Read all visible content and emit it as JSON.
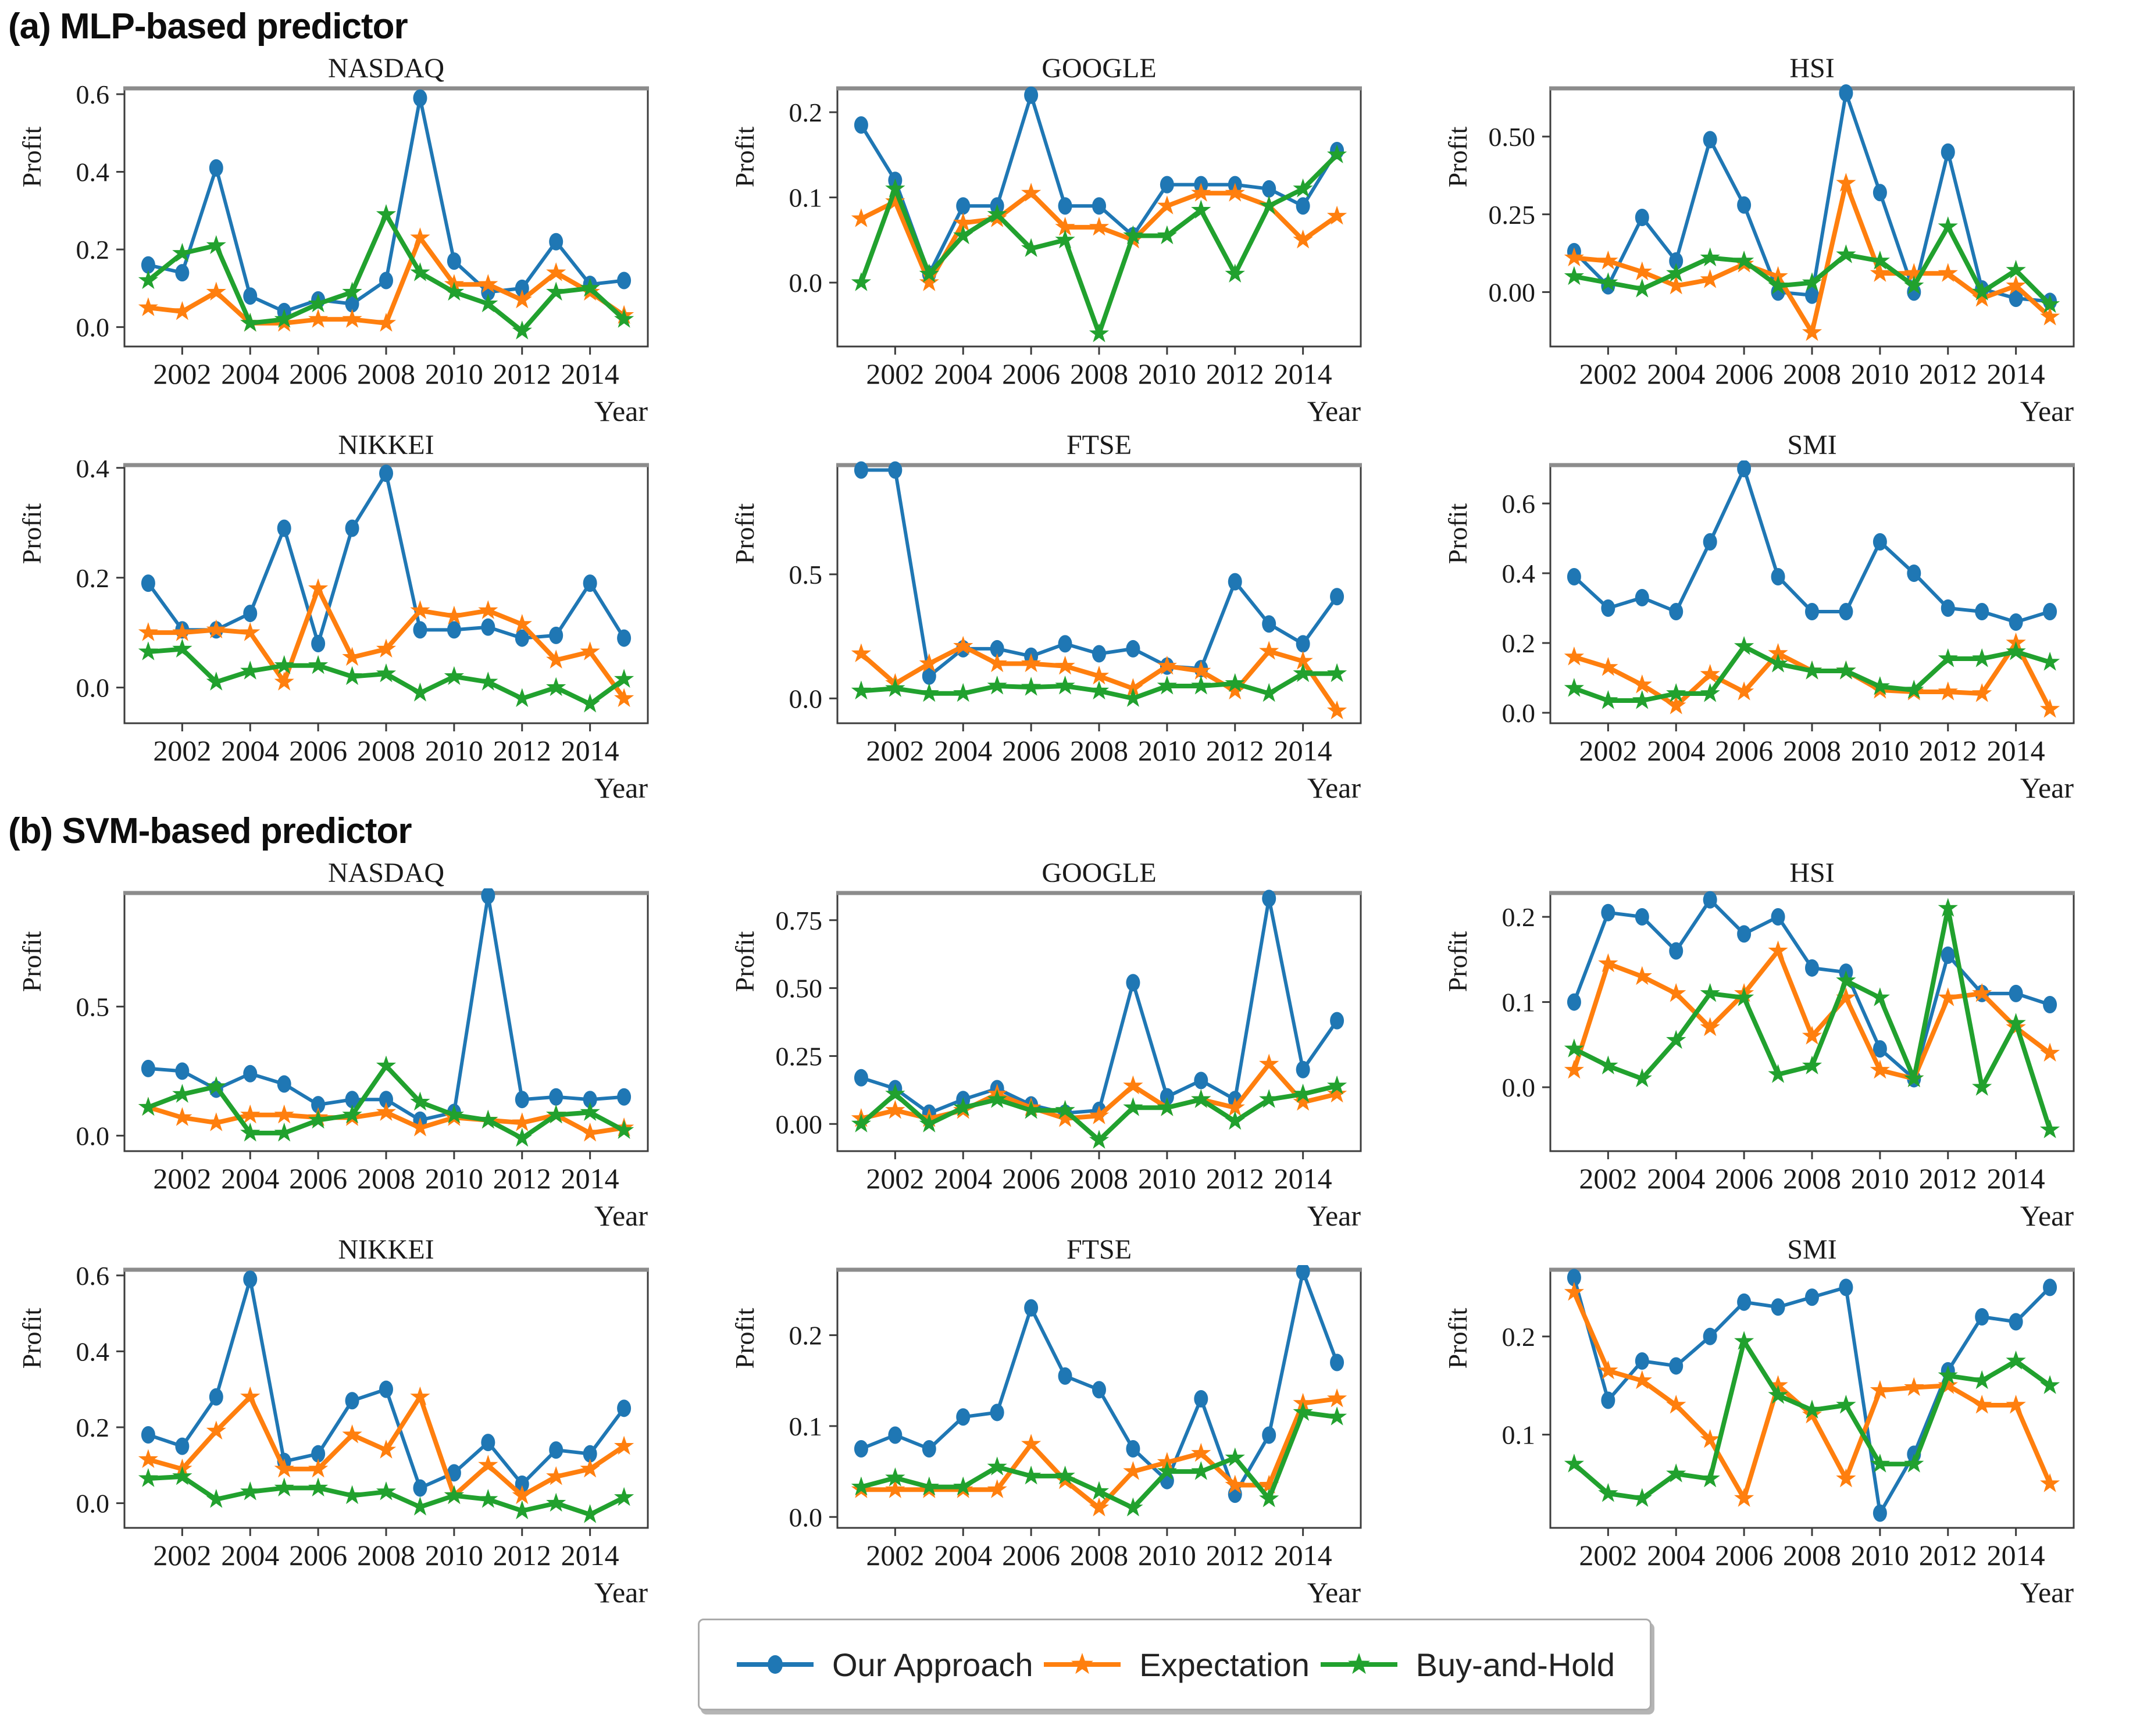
{
  "headings": {
    "a": "(a) MLP-based predictor",
    "b": "(b) SVM-based predictor"
  },
  "axis": {
    "xlabel": "Year",
    "ylabel": "Profit"
  },
  "legend": {
    "items": [
      {
        "label": "Our Approach",
        "color": "#1f77b4",
        "marker": "circle"
      },
      {
        "label": "Expectation",
        "color": "#ff7f0e",
        "marker": "star"
      },
      {
        "label": "Buy-and-Hold",
        "color": "#21a12e",
        "marker": "star"
      }
    ]
  },
  "chart_data": {
    "type": "line",
    "xlabel": "Year",
    "ylabel": "Profit",
    "x_years": [
      2001,
      2002,
      2003,
      2004,
      2005,
      2006,
      2007,
      2008,
      2009,
      2010,
      2011,
      2012,
      2013,
      2014,
      2015
    ],
    "xticks": [
      2002,
      2004,
      2006,
      2008,
      2010,
      2012,
      2014
    ],
    "xlim": [
      2000.3,
      2015.7
    ],
    "legend_position": "bottom",
    "grid": false,
    "charts": [
      {
        "section": "a",
        "title": "NASDAQ",
        "yticks": [
          "0.0",
          "0.2",
          "0.4",
          "0.6"
        ],
        "ylim": [
          -0.05,
          0.615
        ],
        "series": [
          {
            "name": "Our Approach",
            "values": [
              0.16,
              0.14,
              0.41,
              0.08,
              0.04,
              0.07,
              0.06,
              0.12,
              0.59,
              0.17,
              0.09,
              0.1,
              0.22,
              0.11,
              0.12
            ]
          },
          {
            "name": "Expectation",
            "values": [
              0.05,
              0.04,
              0.09,
              0.01,
              0.01,
              0.02,
              0.02,
              0.01,
              0.23,
              0.11,
              0.11,
              0.07,
              0.14,
              0.09,
              0.03
            ]
          },
          {
            "name": "Buy-and-Hold",
            "values": [
              0.12,
              0.19,
              0.21,
              0.01,
              0.02,
              0.06,
              0.09,
              0.29,
              0.14,
              0.09,
              0.06,
              -0.01,
              0.09,
              0.1,
              0.02
            ]
          }
        ]
      },
      {
        "section": "a",
        "title": "GOOGLE",
        "yticks": [
          "0.0",
          "0.1",
          "0.2"
        ],
        "ylim": [
          -0.075,
          0.228
        ],
        "series": [
          {
            "name": "Our Approach",
            "values": [
              0.185,
              0.12,
              0.01,
              0.09,
              0.09,
              0.22,
              0.09,
              0.09,
              0.055,
              0.115,
              0.115,
              0.115,
              0.11,
              0.09,
              0.155
            ]
          },
          {
            "name": "Expectation",
            "values": [
              0.075,
              0.095,
              0.0,
              0.07,
              0.075,
              0.105,
              0.065,
              0.065,
              0.05,
              0.09,
              0.105,
              0.105,
              0.09,
              0.05,
              0.078
            ]
          },
          {
            "name": "Buy-and-Hold",
            "values": [
              0.0,
              0.11,
              0.01,
              0.055,
              0.08,
              0.04,
              0.05,
              -0.06,
              0.055,
              0.055,
              0.085,
              0.01,
              0.09,
              0.11,
              0.15
            ]
          }
        ]
      },
      {
        "section": "a",
        "title": "HSI",
        "yticks": [
          "0.00",
          "0.25",
          "0.50"
        ],
        "ylim": [
          -0.175,
          0.655
        ],
        "series": [
          {
            "name": "Our Approach",
            "values": [
              0.13,
              0.02,
              0.24,
              0.1,
              0.49,
              0.28,
              0.0,
              -0.01,
              0.64,
              0.32,
              0.0,
              0.45,
              0.01,
              -0.02,
              -0.03
            ]
          },
          {
            "name": "Expectation",
            "values": [
              0.11,
              0.1,
              0.065,
              0.02,
              0.04,
              0.09,
              0.05,
              -0.13,
              0.35,
              0.06,
              0.06,
              0.06,
              -0.02,
              0.02,
              -0.08
            ]
          },
          {
            "name": "Buy-and-Hold",
            "values": [
              0.05,
              0.03,
              0.01,
              0.06,
              0.11,
              0.1,
              0.02,
              0.03,
              0.12,
              0.1,
              0.02,
              0.21,
              0.0,
              0.07,
              -0.04
            ]
          }
        ]
      },
      {
        "section": "a",
        "title": "NIKKEI",
        "yticks": [
          "0.0",
          "0.2",
          "0.4"
        ],
        "ylim": [
          -0.065,
          0.405
        ],
        "series": [
          {
            "name": "Our Approach",
            "values": [
              0.19,
              0.105,
              0.105,
              0.135,
              0.29,
              0.08,
              0.29,
              0.39,
              0.105,
              0.105,
              0.11,
              0.09,
              0.095,
              0.19,
              0.09
            ]
          },
          {
            "name": "Expectation",
            "values": [
              0.1,
              0.1,
              0.105,
              0.1,
              0.01,
              0.18,
              0.055,
              0.07,
              0.14,
              0.13,
              0.14,
              0.115,
              0.05,
              0.065,
              -0.02
            ]
          },
          {
            "name": "Buy-and-Hold",
            "values": [
              0.065,
              0.07,
              0.01,
              0.03,
              0.04,
              0.04,
              0.02,
              0.025,
              -0.01,
              0.02,
              0.01,
              -0.02,
              0.0,
              -0.03,
              0.015
            ]
          }
        ]
      },
      {
        "section": "a",
        "title": "FTSE",
        "yticks": [
          "0.0",
          "0.5"
        ],
        "ylim": [
          -0.1,
          0.94
        ],
        "series": [
          {
            "name": "Our Approach",
            "values": [
              0.92,
              0.92,
              0.09,
              0.2,
              0.2,
              0.17,
              0.22,
              0.18,
              0.2,
              0.13,
              0.12,
              0.47,
              0.3,
              0.22,
              0.41
            ]
          },
          {
            "name": "Expectation",
            "values": [
              0.18,
              0.06,
              0.14,
              0.21,
              0.14,
              0.14,
              0.13,
              0.09,
              0.04,
              0.13,
              0.11,
              0.03,
              0.19,
              0.15,
              -0.05
            ]
          },
          {
            "name": "Buy-and-Hold",
            "values": [
              0.03,
              0.04,
              0.02,
              0.02,
              0.05,
              0.045,
              0.05,
              0.03,
              0.0,
              0.05,
              0.05,
              0.06,
              0.02,
              0.1,
              0.1
            ]
          }
        ]
      },
      {
        "section": "a",
        "title": "SMI",
        "yticks": [
          "0.0",
          "0.2",
          "0.4",
          "0.6"
        ],
        "ylim": [
          -0.03,
          0.71
        ],
        "series": [
          {
            "name": "Our Approach",
            "values": [
              0.39,
              0.3,
              0.33,
              0.29,
              0.49,
              0.7,
              0.39,
              0.29,
              0.29,
              0.49,
              0.4,
              0.3,
              0.29,
              0.26,
              0.29
            ]
          },
          {
            "name": "Expectation",
            "values": [
              0.16,
              0.13,
              0.08,
              0.02,
              0.11,
              0.06,
              0.17,
              0.12,
              0.12,
              0.065,
              0.06,
              0.06,
              0.055,
              0.2,
              0.01
            ]
          },
          {
            "name": "Buy-and-Hold",
            "values": [
              0.07,
              0.035,
              0.035,
              0.055,
              0.055,
              0.19,
              0.14,
              0.12,
              0.12,
              0.075,
              0.065,
              0.155,
              0.155,
              0.175,
              0.145
            ]
          }
        ]
      },
      {
        "section": "b",
        "title": "NASDAQ",
        "yticks": [
          "0.0",
          "0.5"
        ],
        "ylim": [
          -0.06,
          0.94
        ],
        "series": [
          {
            "name": "Our Approach",
            "values": [
              0.26,
              0.25,
              0.18,
              0.24,
              0.2,
              0.12,
              0.14,
              0.14,
              0.06,
              0.09,
              0.93,
              0.14,
              0.15,
              0.14,
              0.15
            ]
          },
          {
            "name": "Expectation",
            "values": [
              0.11,
              0.07,
              0.05,
              0.08,
              0.08,
              0.07,
              0.07,
              0.09,
              0.03,
              0.07,
              0.06,
              0.05,
              0.08,
              0.01,
              0.03
            ]
          },
          {
            "name": "Buy-and-Hold",
            "values": [
              0.11,
              0.16,
              0.19,
              0.01,
              0.01,
              0.06,
              0.08,
              0.27,
              0.13,
              0.08,
              0.06,
              -0.01,
              0.08,
              0.09,
              0.02
            ]
          }
        ]
      },
      {
        "section": "b",
        "title": "GOOGLE",
        "yticks": [
          "0.00",
          "0.25",
          "0.50",
          "0.75"
        ],
        "ylim": [
          -0.1,
          0.85
        ],
        "series": [
          {
            "name": "Our Approach",
            "values": [
              0.17,
              0.13,
              0.04,
              0.09,
              0.13,
              0.07,
              0.04,
              0.05,
              0.52,
              0.1,
              0.16,
              0.09,
              0.83,
              0.2,
              0.38
            ]
          },
          {
            "name": "Expectation",
            "values": [
              0.02,
              0.05,
              0.02,
              0.05,
              0.11,
              0.06,
              0.02,
              0.03,
              0.14,
              0.06,
              0.09,
              0.06,
              0.22,
              0.08,
              0.11
            ]
          },
          {
            "name": "Buy-and-Hold",
            "values": [
              0.0,
              0.11,
              0.0,
              0.06,
              0.09,
              0.05,
              0.05,
              -0.06,
              0.06,
              0.06,
              0.09,
              0.01,
              0.09,
              0.11,
              0.14
            ]
          }
        ]
      },
      {
        "section": "b",
        "title": "HSI",
        "yticks": [
          "0.0",
          "0.1",
          "0.2"
        ],
        "ylim": [
          -0.075,
          0.228
        ],
        "series": [
          {
            "name": "Our Approach",
            "values": [
              0.1,
              0.205,
              0.2,
              0.16,
              0.22,
              0.18,
              0.2,
              0.14,
              0.135,
              0.045,
              0.01,
              0.155,
              0.11,
              0.11,
              0.097
            ]
          },
          {
            "name": "Expectation",
            "values": [
              0.02,
              0.145,
              0.13,
              0.11,
              0.07,
              0.11,
              0.16,
              0.06,
              0.105,
              0.02,
              0.01,
              0.105,
              0.11,
              0.07,
              0.04
            ]
          },
          {
            "name": "Buy-and-Hold",
            "values": [
              0.045,
              0.025,
              0.01,
              0.055,
              0.11,
              0.105,
              0.015,
              0.025,
              0.125,
              0.105,
              0.01,
              0.21,
              0.0,
              0.075,
              -0.05
            ]
          }
        ]
      },
      {
        "section": "b",
        "title": "NIKKEI",
        "yticks": [
          "0.0",
          "0.2",
          "0.4",
          "0.6"
        ],
        "ylim": [
          -0.065,
          0.615
        ],
        "series": [
          {
            "name": "Our Approach",
            "values": [
              0.18,
              0.15,
              0.28,
              0.59,
              0.11,
              0.13,
              0.27,
              0.3,
              0.04,
              0.08,
              0.16,
              0.05,
              0.14,
              0.13,
              0.25
            ]
          },
          {
            "name": "Expectation",
            "values": [
              0.115,
              0.09,
              0.19,
              0.28,
              0.09,
              0.09,
              0.18,
              0.14,
              0.28,
              0.02,
              0.1,
              0.02,
              0.07,
              0.09,
              0.15
            ]
          },
          {
            "name": "Buy-and-Hold",
            "values": [
              0.065,
              0.07,
              0.01,
              0.03,
              0.04,
              0.04,
              0.02,
              0.03,
              -0.01,
              0.02,
              0.01,
              -0.02,
              0.0,
              -0.03,
              0.015
            ]
          }
        ]
      },
      {
        "section": "b",
        "title": "FTSE",
        "yticks": [
          "0.0",
          "0.1",
          "0.2"
        ],
        "ylim": [
          -0.012,
          0.272
        ],
        "series": [
          {
            "name": "Our Approach",
            "values": [
              0.075,
              0.09,
              0.075,
              0.11,
              0.115,
              0.23,
              0.155,
              0.14,
              0.075,
              0.04,
              0.13,
              0.025,
              0.09,
              0.27,
              0.17
            ]
          },
          {
            "name": "Expectation",
            "values": [
              0.03,
              0.03,
              0.03,
              0.03,
              0.03,
              0.08,
              0.04,
              0.01,
              0.05,
              0.06,
              0.07,
              0.035,
              0.035,
              0.125,
              0.13
            ]
          },
          {
            "name": "Buy-and-Hold",
            "values": [
              0.033,
              0.043,
              0.033,
              0.033,
              0.055,
              0.045,
              0.045,
              0.028,
              0.01,
              0.05,
              0.05,
              0.065,
              0.02,
              0.115,
              0.11
            ]
          }
        ]
      },
      {
        "section": "b",
        "title": "SMI",
        "yticks": [
          "0.1",
          "0.2"
        ],
        "ylim": [
          0.005,
          0.268
        ],
        "series": [
          {
            "name": "Our Approach",
            "values": [
              0.26,
              0.135,
              0.175,
              0.17,
              0.2,
              0.235,
              0.23,
              0.24,
              0.25,
              0.02,
              0.08,
              0.165,
              0.22,
              0.215,
              0.25
            ]
          },
          {
            "name": "Expectation",
            "values": [
              0.245,
              0.165,
              0.155,
              0.13,
              0.095,
              0.035,
              0.15,
              0.12,
              0.055,
              0.145,
              0.148,
              0.15,
              0.13,
              0.13,
              0.05
            ]
          },
          {
            "name": "Buy-and-Hold",
            "values": [
              0.07,
              0.04,
              0.035,
              0.06,
              0.055,
              0.195,
              0.14,
              0.125,
              0.13,
              0.07,
              0.07,
              0.16,
              0.155,
              0.175,
              0.15
            ]
          }
        ]
      }
    ]
  }
}
